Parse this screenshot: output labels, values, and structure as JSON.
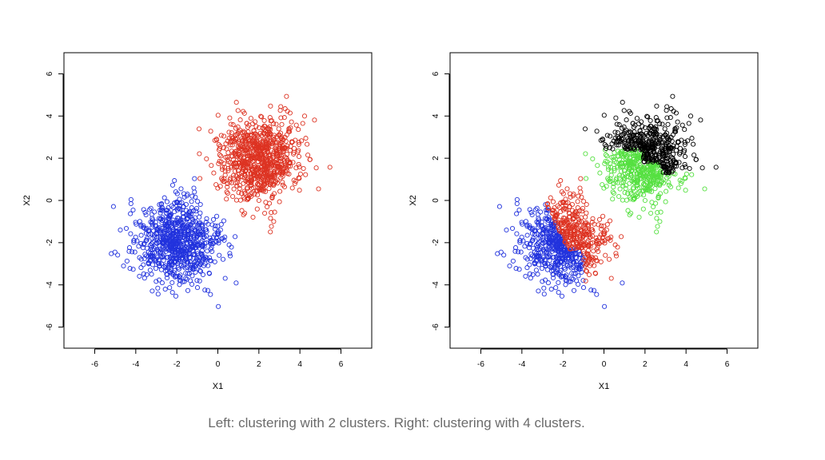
{
  "caption": "Left: clustering with 2 clusters. Right: clustering with 4 clusters.",
  "chart_data": [
    {
      "type": "scatter",
      "title": "",
      "xlabel": "X1",
      "ylabel": "X2",
      "xlim": [
        -7.5,
        7.5
      ],
      "ylim": [
        -7,
        7
      ],
      "x_ticks": [
        -6,
        -4,
        -2,
        0,
        2,
        4,
        6
      ],
      "y_ticks": [
        -6,
        -4,
        -2,
        0,
        2,
        4,
        6
      ],
      "marker": "open-circle",
      "series": [
        {
          "color": "#2233dd",
          "center": [
            -2.0,
            -2.0
          ],
          "spread": 1.0,
          "n": 800
        },
        {
          "color": "#dd3322",
          "center": [
            2.0,
            2.0
          ],
          "spread": 1.0,
          "n": 800
        }
      ]
    },
    {
      "type": "scatter",
      "title": "",
      "xlabel": "X1",
      "ylabel": "X2",
      "xlim": [
        -7.5,
        7.5
      ],
      "ylim": [
        -7,
        7
      ],
      "x_ticks": [
        -6,
        -4,
        -2,
        0,
        2,
        4,
        6
      ],
      "y_ticks": [
        -6,
        -4,
        -2,
        0,
        2,
        4,
        6
      ],
      "marker": "open-circle",
      "series": [
        {
          "color": "#2233dd",
          "region": "x<-1.4 or y<-2.2 (lower-left group)",
          "center": [
            -2.0,
            -2.0
          ],
          "spread": 1.0,
          "n": 800
        },
        {
          "color": "#dd3322",
          "region": "upper-right part of lower-left group",
          "center": [
            -2.0,
            -2.0
          ],
          "spread": 1.0,
          "n": 0
        },
        {
          "color": "#55e040",
          "region": "lower-left part of upper-right group",
          "center": [
            2.0,
            2.0
          ],
          "spread": 1.0,
          "n": 800
        },
        {
          "color": "#000000",
          "region": "upper-right part of upper-right group",
          "center": [
            2.0,
            2.0
          ],
          "spread": 1.0,
          "n": 0
        }
      ]
    }
  ]
}
